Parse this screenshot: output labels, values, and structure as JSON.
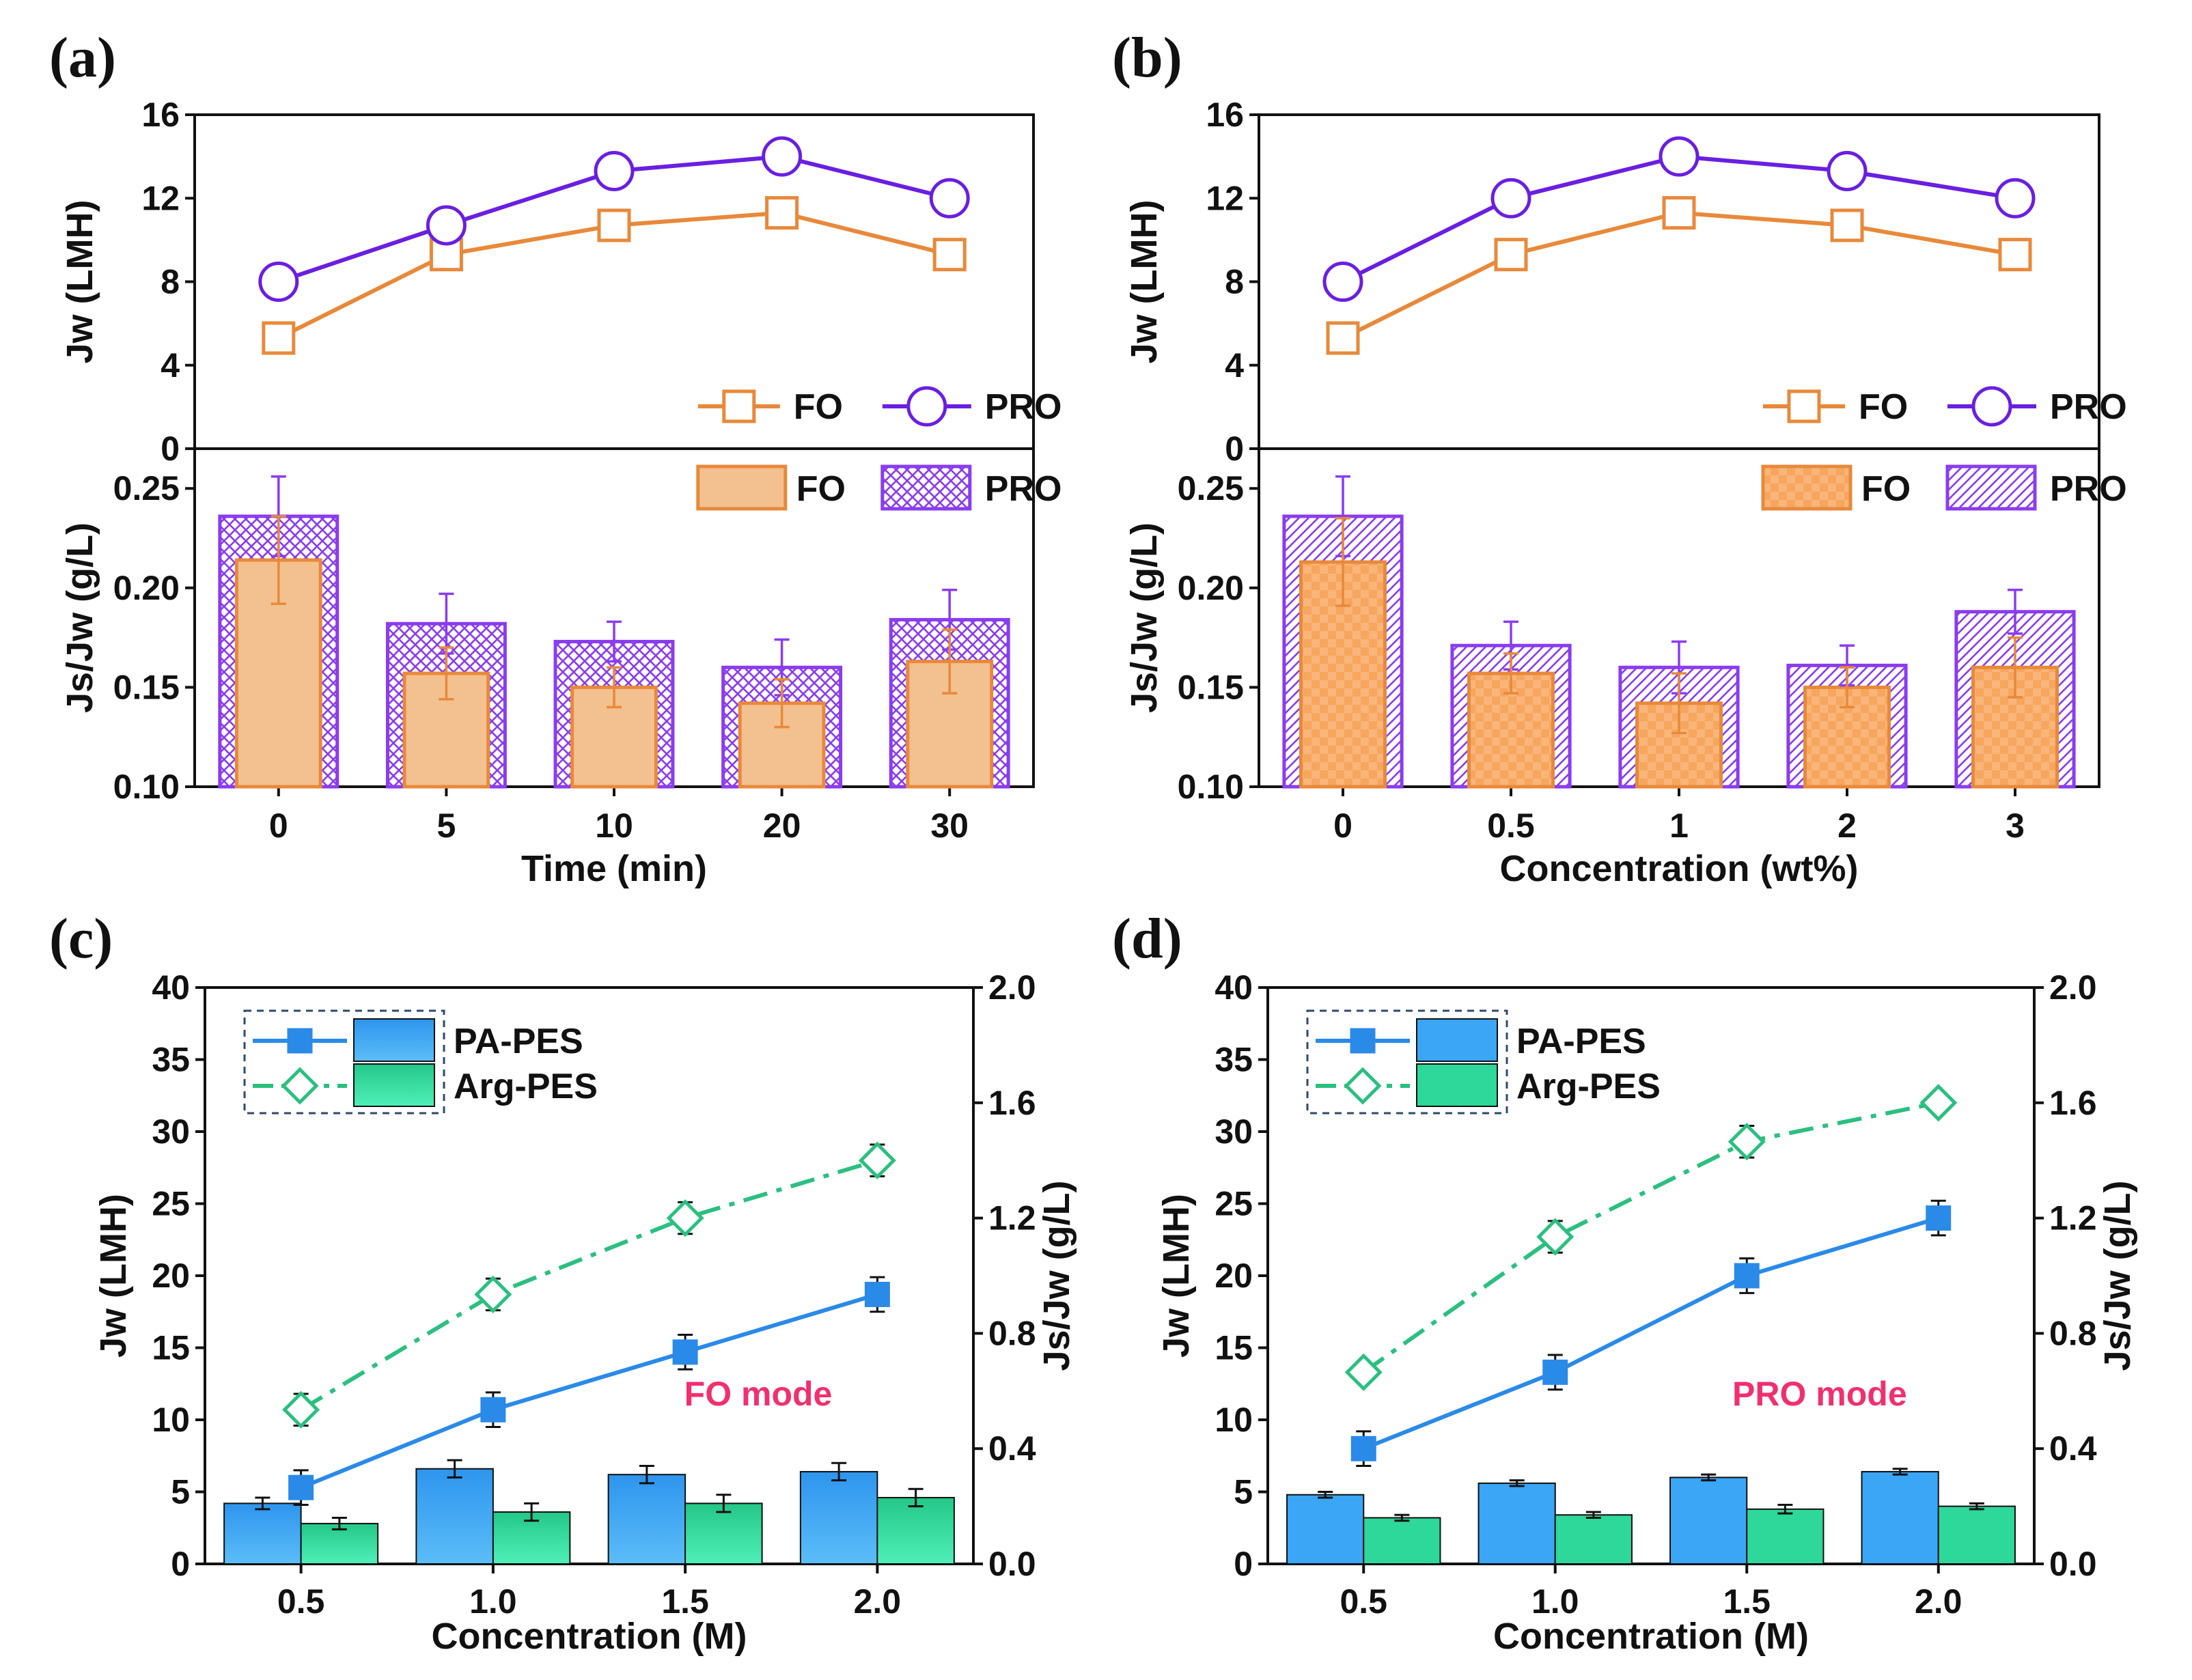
{
  "colors": {
    "fo_line": "#E8893A",
    "pro_line": "#6A1FE0",
    "fo_bar_a": "#F3C08F",
    "fo_bar_edge": "#E8893A",
    "fo_bar_b": "#F7A65E",
    "pro_hatch": "#8A3CF0",
    "pa_pes": "#2A8AE8",
    "pa_pes_bar": "#3AA6F5",
    "arg_pes": "#2BBF80",
    "arg_pes_bar": "#2ED89A",
    "mode_text": "#F0306E"
  },
  "chart_data": [
    {
      "panel": "(a)",
      "type": "line+bar",
      "categories": [
        "0",
        "5",
        "10",
        "20",
        "30"
      ],
      "xlabel": "Time (min)",
      "top": {
        "ylabel": "Jw (LMH)",
        "ylim": [
          0,
          16
        ],
        "yticks": [
          "0",
          "4",
          "8",
          "12",
          "16"
        ],
        "series": [
          {
            "name": "FO",
            "values": [
              5.3,
              9.3,
              10.7,
              11.3,
              9.3
            ],
            "errors": [
              0.4,
              0.5,
              0.6,
              0.7,
              0.7
            ]
          },
          {
            "name": "PRO",
            "values": [
              8.0,
              10.7,
              13.3,
              14.0,
              12.0
            ],
            "errors": [
              0.3,
              0.6,
              0.4,
              0.3,
              0.6
            ]
          }
        ]
      },
      "bottom": {
        "ylabel": "Js/Jw (g/L)",
        "ylim": [
          0.1,
          0.27
        ],
        "yticks": [
          "0.10",
          "0.15",
          "0.20",
          "0.25"
        ],
        "series": [
          {
            "name": "FO",
            "values": [
              0.214,
              0.157,
              0.15,
              0.142,
              0.163
            ],
            "errors": [
              0.022,
              0.013,
              0.01,
              0.012,
              0.016
            ]
          },
          {
            "name": "PRO",
            "values": [
              0.236,
              0.182,
              0.173,
              0.16,
              0.184
            ],
            "errors": [
              0.02,
              0.015,
              0.01,
              0.014,
              0.015
            ]
          }
        ]
      }
    },
    {
      "panel": "(b)",
      "type": "line+bar",
      "categories": [
        "0",
        "0.5",
        "1",
        "2",
        "3"
      ],
      "xlabel": "Concentration (wt%)",
      "top": {
        "ylabel": "Jw (LMH)",
        "ylim": [
          0,
          16
        ],
        "yticks": [
          "0",
          "4",
          "8",
          "12",
          "16"
        ],
        "series": [
          {
            "name": "FO",
            "values": [
              5.3,
              9.3,
              11.3,
              10.7,
              9.3
            ],
            "errors": [
              0.3,
              0.7,
              0.7,
              0.7,
              0.7
            ]
          },
          {
            "name": "PRO",
            "values": [
              8.0,
              12.0,
              14.0,
              13.3,
              12.0
            ],
            "errors": [
              0.3,
              0.4,
              0.3,
              0.7,
              0.4
            ]
          }
        ]
      },
      "bottom": {
        "ylabel": "Js/Jw (g/L)",
        "ylim": [
          0.1,
          0.27
        ],
        "yticks": [
          "0.10",
          "0.15",
          "0.20",
          "0.25"
        ],
        "series": [
          {
            "name": "FO",
            "values": [
              0.213,
              0.157,
              0.142,
              0.15,
              0.16
            ],
            "errors": [
              0.022,
              0.01,
              0.015,
              0.01,
              0.015
            ]
          },
          {
            "name": "PRO",
            "values": [
              0.236,
              0.171,
              0.16,
              0.161,
              0.188
            ],
            "errors": [
              0.02,
              0.012,
              0.013,
              0.01,
              0.011
            ]
          }
        ]
      }
    },
    {
      "panel": "(c)",
      "type": "line+bar",
      "categories": [
        "0.5",
        "1.0",
        "1.5",
        "2.0"
      ],
      "xlabel": "Concentration (M)",
      "ylabel_left": "Jw (LMH)",
      "ylim_left": [
        0,
        40
      ],
      "yticks_left": [
        "0",
        "5",
        "10",
        "15",
        "20",
        "25",
        "30",
        "35",
        "40"
      ],
      "ylabel_right": "Js/Jw (g/L)",
      "ylim_right": [
        0,
        2.0
      ],
      "yticks_right": [
        "0.0",
        "0.4",
        "0.8",
        "1.2",
        "1.6",
        "2.0"
      ],
      "mode_label": "FO mode",
      "legend": [
        "PA-PES",
        "Arg-PES"
      ],
      "lines": [
        {
          "name": "PA-PES",
          "values": [
            5.3,
            10.7,
            14.7,
            18.7
          ],
          "errors": [
            1.2,
            1.2,
            1.2,
            1.2
          ]
        },
        {
          "name": "Arg-PES",
          "values": [
            10.7,
            18.7,
            24.0,
            28.0
          ],
          "errors": [
            1.1,
            1.1,
            1.1,
            1.1
          ]
        }
      ],
      "bars": [
        {
          "name": "PA-PES",
          "values": [
            0.21,
            0.33,
            0.31,
            0.32
          ],
          "errors": [
            0.02,
            0.03,
            0.03,
            0.03
          ]
        },
        {
          "name": "Arg-PES",
          "values": [
            0.14,
            0.18,
            0.21,
            0.23
          ],
          "errors": [
            0.02,
            0.03,
            0.03,
            0.03
          ]
        }
      ]
    },
    {
      "panel": "(d)",
      "type": "line+bar",
      "categories": [
        "0.5",
        "1.0",
        "1.5",
        "2.0"
      ],
      "xlabel": "Concentration (M)",
      "ylabel_left": "Jw (LMH)",
      "ylim_left": [
        0,
        40
      ],
      "yticks_left": [
        "0",
        "5",
        "10",
        "15",
        "20",
        "25",
        "30",
        "35",
        "40"
      ],
      "ylabel_right": "Js/Jw (g/L)",
      "ylim_right": [
        0,
        2.0
      ],
      "yticks_right": [
        "0.0",
        "0.4",
        "0.8",
        "1.2",
        "1.6",
        "2.0"
      ],
      "mode_label": "PRO mode",
      "legend": [
        "PA-PES",
        "Arg-PES"
      ],
      "lines": [
        {
          "name": "PA-PES",
          "values": [
            8.0,
            13.3,
            20.0,
            24.0
          ],
          "errors": [
            1.2,
            1.2,
            1.2,
            1.2
          ]
        },
        {
          "name": "Arg-PES",
          "values": [
            13.3,
            22.7,
            29.3,
            32.0
          ],
          "errors": [
            0.5,
            1.1,
            1.1,
            0.5
          ]
        }
      ],
      "bars": [
        {
          "name": "PA-PES",
          "values": [
            0.24,
            0.28,
            0.3,
            0.32
          ],
          "errors": [
            0.01,
            0.01,
            0.01,
            0.01
          ]
        },
        {
          "name": "Arg-PES",
          "values": [
            0.16,
            0.17,
            0.19,
            0.2
          ],
          "errors": [
            0.01,
            0.01,
            0.015,
            0.01
          ]
        }
      ]
    }
  ]
}
